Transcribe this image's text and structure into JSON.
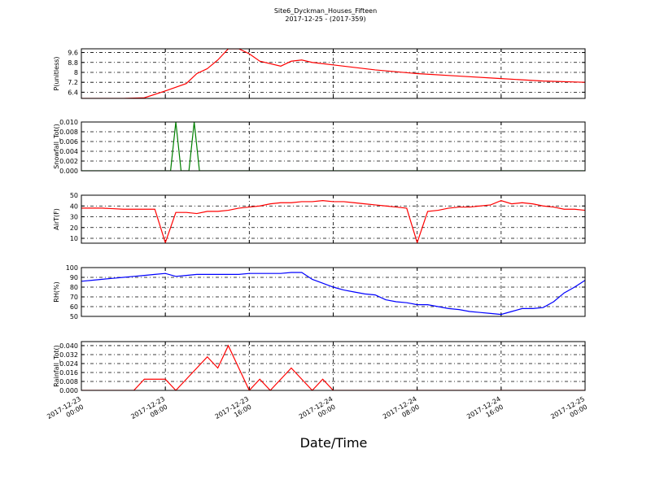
{
  "chart_data": [
    {
      "type": "line",
      "title": "Site6_Dyckman_Houses_Fifteen",
      "subtitle": "2017-12-25 - (2017-359)",
      "ylabel": "P(unitless)",
      "color": "#ff0000",
      "x": [
        "2017-12-23 00:00",
        "2017-12-23 02:00",
        "2017-12-23 04:00",
        "2017-12-23 06:00",
        "2017-12-23 08:00",
        "2017-12-23 10:00",
        "2017-12-23 11:00",
        "2017-12-23 12:00",
        "2017-12-23 13:00",
        "2017-12-23 14:00",
        "2017-12-23 15:00",
        "2017-12-23 16:00",
        "2017-12-23 17:00",
        "2017-12-23 19:00",
        "2017-12-23 20:00",
        "2017-12-23 21:00",
        "2017-12-23 22:00",
        "2017-12-24 00:00",
        "2017-12-24 04:00",
        "2017-12-24 08:00",
        "2017-12-24 12:00",
        "2017-12-24 16:00",
        "2017-12-24 20:00",
        "2017-12-25 00:00"
      ],
      "values": [
        5.9,
        5.9,
        5.9,
        5.95,
        6.5,
        7.1,
        7.9,
        8.3,
        9.0,
        9.9,
        9.9,
        9.5,
        8.9,
        8.5,
        8.9,
        9.0,
        8.8,
        8.6,
        8.2,
        7.9,
        7.7,
        7.5,
        7.3,
        7.2
      ],
      "xlim": [
        "2017-12-23 00:00",
        "2017-12-25 00:00"
      ],
      "xticks": [
        "2017-12-23 00:00",
        "2017-12-23 08:00",
        "2017-12-23 16:00",
        "2017-12-24 00:00",
        "2017-12-24 08:00",
        "2017-12-24 16:00",
        "2017-12-25 00:00"
      ],
      "ylim": [
        5.9,
        9.9
      ],
      "yticks": [
        6.4,
        7.2,
        8.0,
        8.8,
        9.6
      ],
      "grid": true
    },
    {
      "type": "line",
      "ylabel": "Snowfall_Tot()",
      "color": "#007f00",
      "x": [
        "2017-12-23 00:00",
        "2017-12-23 08:30",
        "2017-12-23 09:00",
        "2017-12-23 09:30",
        "2017-12-23 10:15",
        "2017-12-23 10:45",
        "2017-12-23 11:15",
        "2017-12-25 00:00"
      ],
      "values": [
        0,
        0,
        0.01,
        0,
        0,
        0.01,
        0,
        0
      ],
      "xlim": [
        "2017-12-23 00:00",
        "2017-12-25 00:00"
      ],
      "xticks": [
        "2017-12-23 00:00",
        "2017-12-23 08:00",
        "2017-12-23 16:00",
        "2017-12-24 00:00",
        "2017-12-24 08:00",
        "2017-12-24 16:00",
        "2017-12-25 00:00"
      ],
      "ylim": [
        0,
        0.01
      ],
      "yticks": [
        {
          "value": 0,
          "label": "0.000"
        },
        {
          "value": 0.002,
          "label": "0.002"
        },
        {
          "value": 0.004,
          "label": "0.004"
        },
        {
          "value": 0.006,
          "label": "0.006"
        },
        {
          "value": 0.008,
          "label": "0.008"
        },
        {
          "value": 0.01,
          "label": "0.010"
        }
      ],
      "grid": true
    },
    {
      "type": "line",
      "ylabel": "AirT(F)",
      "color": "#ff0000",
      "x": [
        "2017-12-23 00:00",
        "2017-12-23 01:00",
        "2017-12-23 02:00",
        "2017-12-23 03:00",
        "2017-12-23 04:00",
        "2017-12-23 05:00",
        "2017-12-23 06:00",
        "2017-12-23 07:00",
        "2017-12-23 08:00",
        "2017-12-23 09:00",
        "2017-12-23 10:00",
        "2017-12-23 11:00",
        "2017-12-23 12:00",
        "2017-12-23 13:00",
        "2017-12-23 14:00",
        "2017-12-23 15:00",
        "2017-12-23 16:00",
        "2017-12-23 17:00",
        "2017-12-23 18:00",
        "2017-12-23 19:00",
        "2017-12-23 20:00",
        "2017-12-23 21:00",
        "2017-12-23 22:00",
        "2017-12-23 23:00",
        "2017-12-24 00:00",
        "2017-12-24 01:00",
        "2017-12-24 02:00",
        "2017-12-24 03:00",
        "2017-12-24 04:00",
        "2017-12-24 05:00",
        "2017-12-24 06:00",
        "2017-12-24 07:00",
        "2017-12-24 08:00",
        "2017-12-24 09:00",
        "2017-12-24 10:00",
        "2017-12-24 11:00",
        "2017-12-24 12:00",
        "2017-12-24 13:00",
        "2017-12-24 14:00",
        "2017-12-24 15:00",
        "2017-12-24 16:00",
        "2017-12-24 17:00",
        "2017-12-24 18:00",
        "2017-12-24 19:00",
        "2017-12-24 20:00",
        "2017-12-24 21:00",
        "2017-12-24 22:00",
        "2017-12-24 23:00",
        "2017-12-25 00:00"
      ],
      "values": [
        38,
        38,
        38,
        37.5,
        37,
        37,
        37,
        37,
        6,
        34,
        34,
        33,
        35,
        35,
        36,
        38,
        39,
        40,
        42,
        43,
        43,
        44,
        44,
        45,
        44,
        44,
        43,
        42,
        41,
        40,
        39,
        38,
        6,
        35,
        36,
        38,
        39,
        39,
        40,
        41,
        45,
        42,
        43,
        42,
        40,
        39,
        37,
        37,
        36
      ],
      "xlim": [
        "2017-12-23 00:00",
        "2017-12-25 00:00"
      ],
      "xticks": [
        "2017-12-23 00:00",
        "2017-12-23 08:00",
        "2017-12-23 16:00",
        "2017-12-24 00:00",
        "2017-12-24 08:00",
        "2017-12-24 16:00",
        "2017-12-25 00:00"
      ],
      "ylim": [
        5.5,
        50
      ],
      "yticks": [
        10,
        20,
        30,
        40,
        50
      ],
      "grid": true
    },
    {
      "type": "line",
      "ylabel": "RH(%)",
      "color": "#0000ff",
      "x": [
        "2017-12-23 00:00",
        "2017-12-23 01:00",
        "2017-12-23 02:00",
        "2017-12-23 03:00",
        "2017-12-23 04:00",
        "2017-12-23 05:00",
        "2017-12-23 06:00",
        "2017-12-23 07:00",
        "2017-12-23 08:00",
        "2017-12-23 09:00",
        "2017-12-23 10:00",
        "2017-12-23 11:00",
        "2017-12-23 12:00",
        "2017-12-23 13:00",
        "2017-12-23 14:00",
        "2017-12-23 15:00",
        "2017-12-23 16:00",
        "2017-12-23 17:00",
        "2017-12-23 18:00",
        "2017-12-23 19:00",
        "2017-12-23 20:00",
        "2017-12-23 21:00",
        "2017-12-23 22:00",
        "2017-12-23 23:00",
        "2017-12-24 00:00",
        "2017-12-24 01:00",
        "2017-12-24 02:00",
        "2017-12-24 03:00",
        "2017-12-24 04:00",
        "2017-12-24 05:00",
        "2017-12-24 06:00",
        "2017-12-24 07:00",
        "2017-12-24 08:00",
        "2017-12-24 09:00",
        "2017-12-24 10:00",
        "2017-12-24 11:00",
        "2017-12-24 12:00",
        "2017-12-24 13:00",
        "2017-12-24 14:00",
        "2017-12-24 15:00",
        "2017-12-24 16:00",
        "2017-12-24 17:00",
        "2017-12-24 18:00",
        "2017-12-24 19:00",
        "2017-12-24 20:00",
        "2017-12-24 21:00",
        "2017-12-24 22:00",
        "2017-12-24 23:00",
        "2017-12-25 00:00"
      ],
      "values": [
        86,
        87,
        88,
        89,
        90,
        91,
        92,
        93,
        94,
        91,
        92,
        93,
        93,
        93,
        93,
        93,
        94,
        94,
        94,
        94,
        95,
        95,
        88,
        84,
        80,
        77,
        75,
        73,
        72,
        67,
        65,
        64,
        62,
        62,
        60,
        58,
        57,
        55,
        54,
        53,
        52,
        55,
        58,
        58,
        59,
        65,
        74,
        80,
        87
      ],
      "xlim": [
        "2017-12-23 00:00",
        "2017-12-25 00:00"
      ],
      "xticks": [
        "2017-12-23 00:00",
        "2017-12-23 08:00",
        "2017-12-23 16:00",
        "2017-12-24 00:00",
        "2017-12-24 08:00",
        "2017-12-24 16:00",
        "2017-12-25 00:00"
      ],
      "ylim": [
        50,
        100
      ],
      "yticks": [
        50,
        60,
        70,
        80,
        90,
        100
      ],
      "grid": true
    },
    {
      "type": "line",
      "ylabel": "Rainfall_Tot()",
      "xlabel": "Date/Time",
      "color": "#ff0000",
      "x": [
        "2017-12-23 00:00",
        "2017-12-23 05:00",
        "2017-12-23 06:00",
        "2017-12-23 07:00",
        "2017-12-23 08:00",
        "2017-12-23 09:00",
        "2017-12-23 10:00",
        "2017-12-23 11:00",
        "2017-12-23 12:00",
        "2017-12-23 13:00",
        "2017-12-23 14:00",
        "2017-12-23 15:00",
        "2017-12-23 16:00",
        "2017-12-23 17:00",
        "2017-12-23 18:00",
        "2017-12-23 19:00",
        "2017-12-23 20:00",
        "2017-12-23 21:00",
        "2017-12-23 22:00",
        "2017-12-23 23:00",
        "2017-12-24 00:00",
        "2017-12-25 00:00"
      ],
      "values": [
        0,
        0,
        0.01,
        0.01,
        0.01,
        0,
        0.01,
        0.02,
        0.03,
        0.02,
        0.04,
        0.02,
        0,
        0.01,
        0,
        0.01,
        0.02,
        0.01,
        0,
        0.01,
        0,
        0
      ],
      "xlim": [
        "2017-12-23 00:00",
        "2017-12-25 00:00"
      ],
      "xticks": [
        "2017-12-23 00:00",
        "2017-12-23 08:00",
        "2017-12-23 16:00",
        "2017-12-24 00:00",
        "2017-12-24 08:00",
        "2017-12-24 16:00",
        "2017-12-25 00:00"
      ],
      "ylim": [
        0,
        0.0436
      ],
      "yticks": [
        {
          "value": 0,
          "label": "0.000"
        },
        {
          "value": 0.008,
          "label": "0.008"
        },
        {
          "value": 0.016,
          "label": "0.016"
        },
        {
          "value": 0.024,
          "label": "0.024"
        },
        {
          "value": 0.032,
          "label": "0.032"
        },
        {
          "value": 0.04,
          "label": "0.040"
        }
      ],
      "grid": true
    }
  ]
}
